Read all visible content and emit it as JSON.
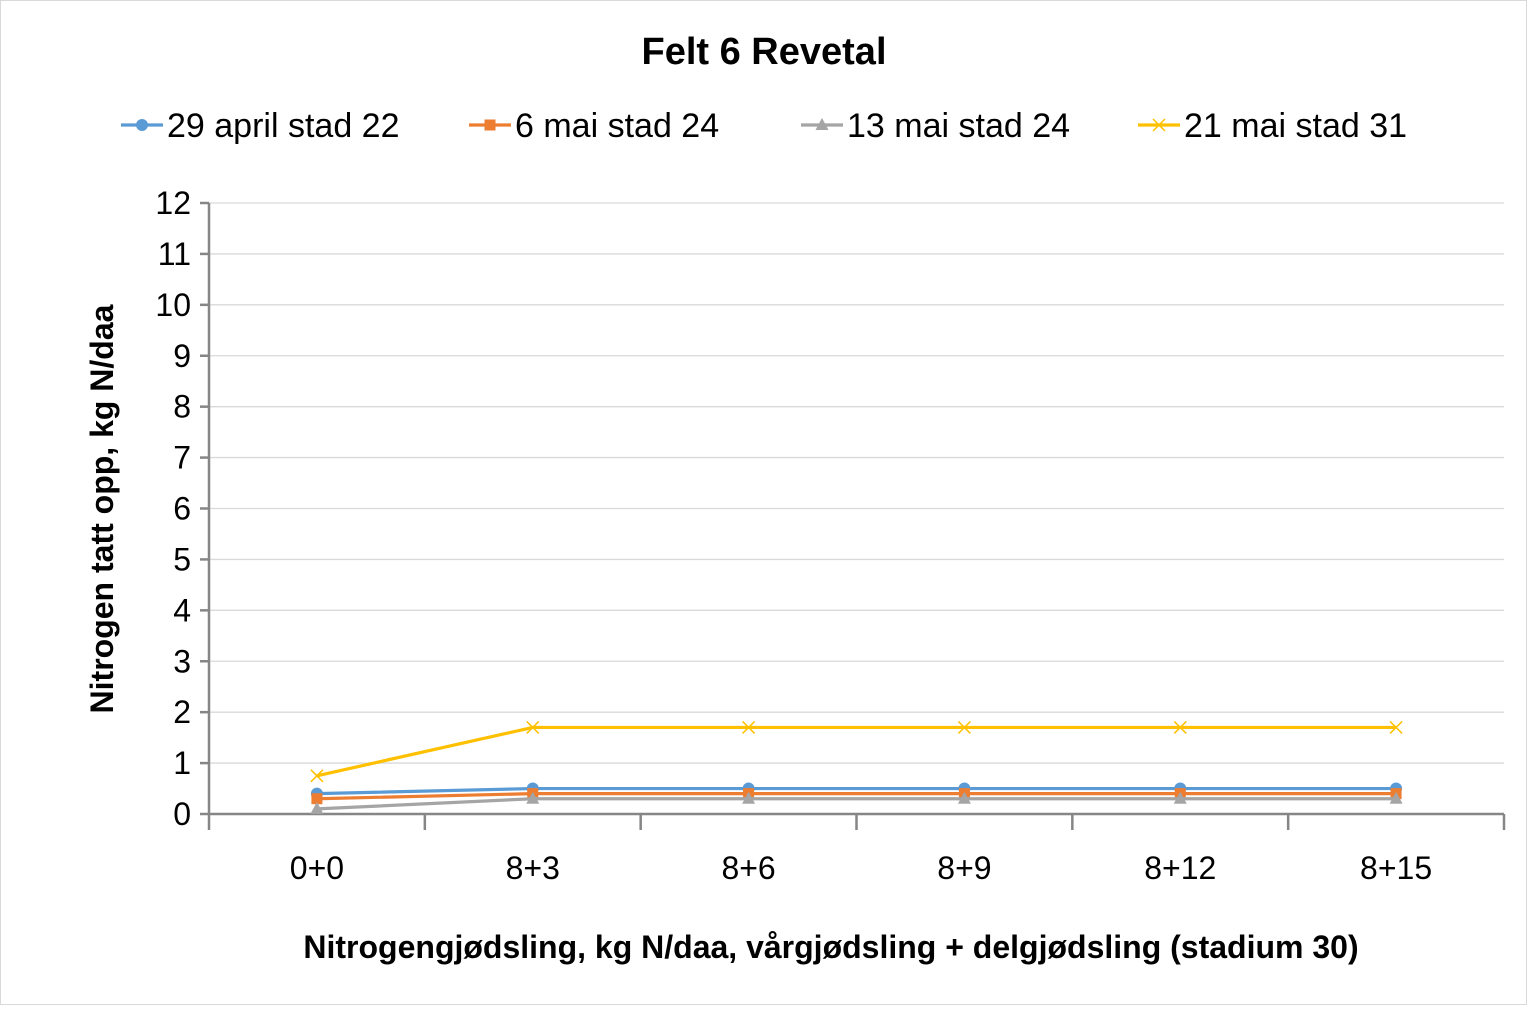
{
  "chart_data": {
    "type": "line",
    "title": "Felt 6 Revetal",
    "xlabel": "Nitrogengjødsling, kg N/daa, vårgjødsling + delgjødsling (stadium 30)",
    "ylabel": "Nitrogen tatt opp, kg N/daa",
    "categories": [
      "0+0",
      "8+3",
      "8+6",
      "8+9",
      "8+12",
      "8+15"
    ],
    "ylim": [
      0,
      12
    ],
    "yticks": [
      0,
      1,
      2,
      3,
      4,
      5,
      6,
      7,
      8,
      9,
      10,
      11,
      12
    ],
    "grid": true,
    "legend_position": "top",
    "series": [
      {
        "name": "29 april stad 22",
        "color": "#5B9BD5",
        "marker": "circle",
        "values": [
          0.4,
          0.5,
          0.5,
          0.5,
          0.5,
          0.5
        ]
      },
      {
        "name": "6 mai stad 24",
        "color": "#ED7D31",
        "marker": "square",
        "values": [
          0.3,
          0.4,
          0.4,
          0.4,
          0.4,
          0.4
        ]
      },
      {
        "name": "13 mai stad 24",
        "color": "#A5A5A5",
        "marker": "triangle",
        "values": [
          0.1,
          0.3,
          0.3,
          0.3,
          0.3,
          0.3
        ]
      },
      {
        "name": "21 mai stad 31",
        "color": "#FFC000",
        "marker": "x",
        "values": [
          0.75,
          1.7,
          1.7,
          1.7,
          1.7,
          1.7
        ]
      }
    ]
  }
}
